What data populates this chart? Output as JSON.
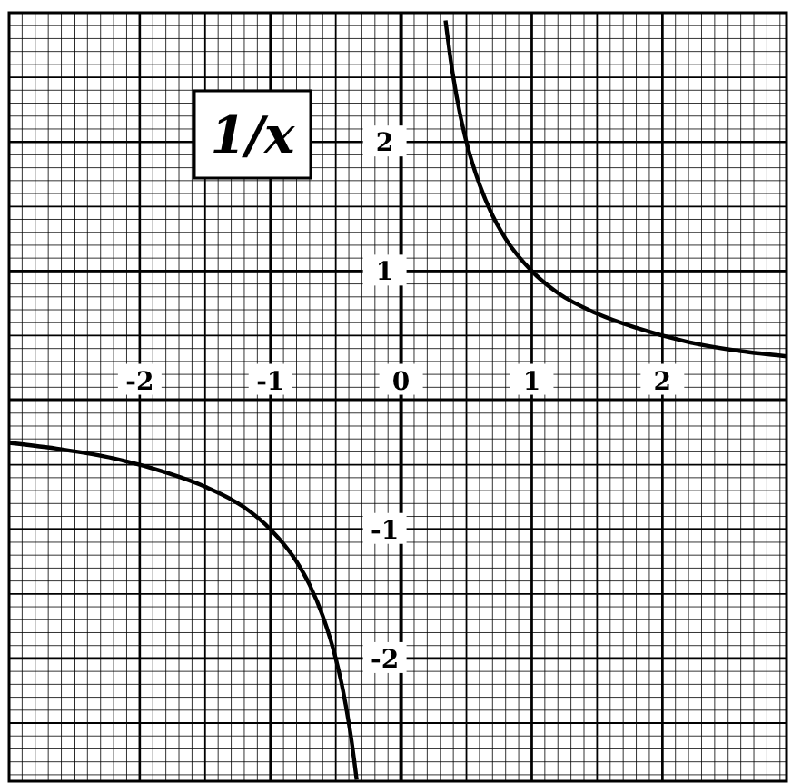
{
  "chart_data": {
    "type": "line",
    "title": "1/x",
    "xlim": [
      -3,
      2.95
    ],
    "ylim": [
      -2.95,
      3
    ],
    "xticks": [
      -2,
      -1,
      0,
      1,
      2
    ],
    "yticks": [
      -2,
      -1,
      1,
      2
    ],
    "grid": true,
    "marker": "none",
    "line_style": "solid",
    "series": [
      {
        "color": "#000000",
        "x": [
          0.34,
          0.36,
          0.38,
          0.4,
          0.45,
          0.5,
          0.6,
          0.7,
          0.8,
          1,
          1.2,
          1.5,
          1.8,
          2.2,
          2.6,
          2.95
        ],
        "values": [
          2.94,
          2.78,
          2.63,
          2.5,
          2.22,
          2,
          1.67,
          1.43,
          1.25,
          1,
          0.83,
          0.67,
          0.56,
          0.45,
          0.38,
          0.34
        ]
      },
      {
        "color": "#000000",
        "x": [
          -3,
          -2.6,
          -2.2,
          -1.8,
          -1.5,
          -1.2,
          -1,
          -0.8,
          -0.7,
          -0.6,
          -0.5,
          -0.45,
          -0.4,
          -0.38,
          -0.36,
          -0.34
        ],
        "values": [
          -0.33,
          -0.38,
          -0.45,
          -0.56,
          -0.67,
          -0.83,
          -1,
          -1.25,
          -1.43,
          -1.67,
          -2,
          -2.22,
          -2.5,
          -2.63,
          -2.78,
          -2.94
        ]
      }
    ]
  }
}
